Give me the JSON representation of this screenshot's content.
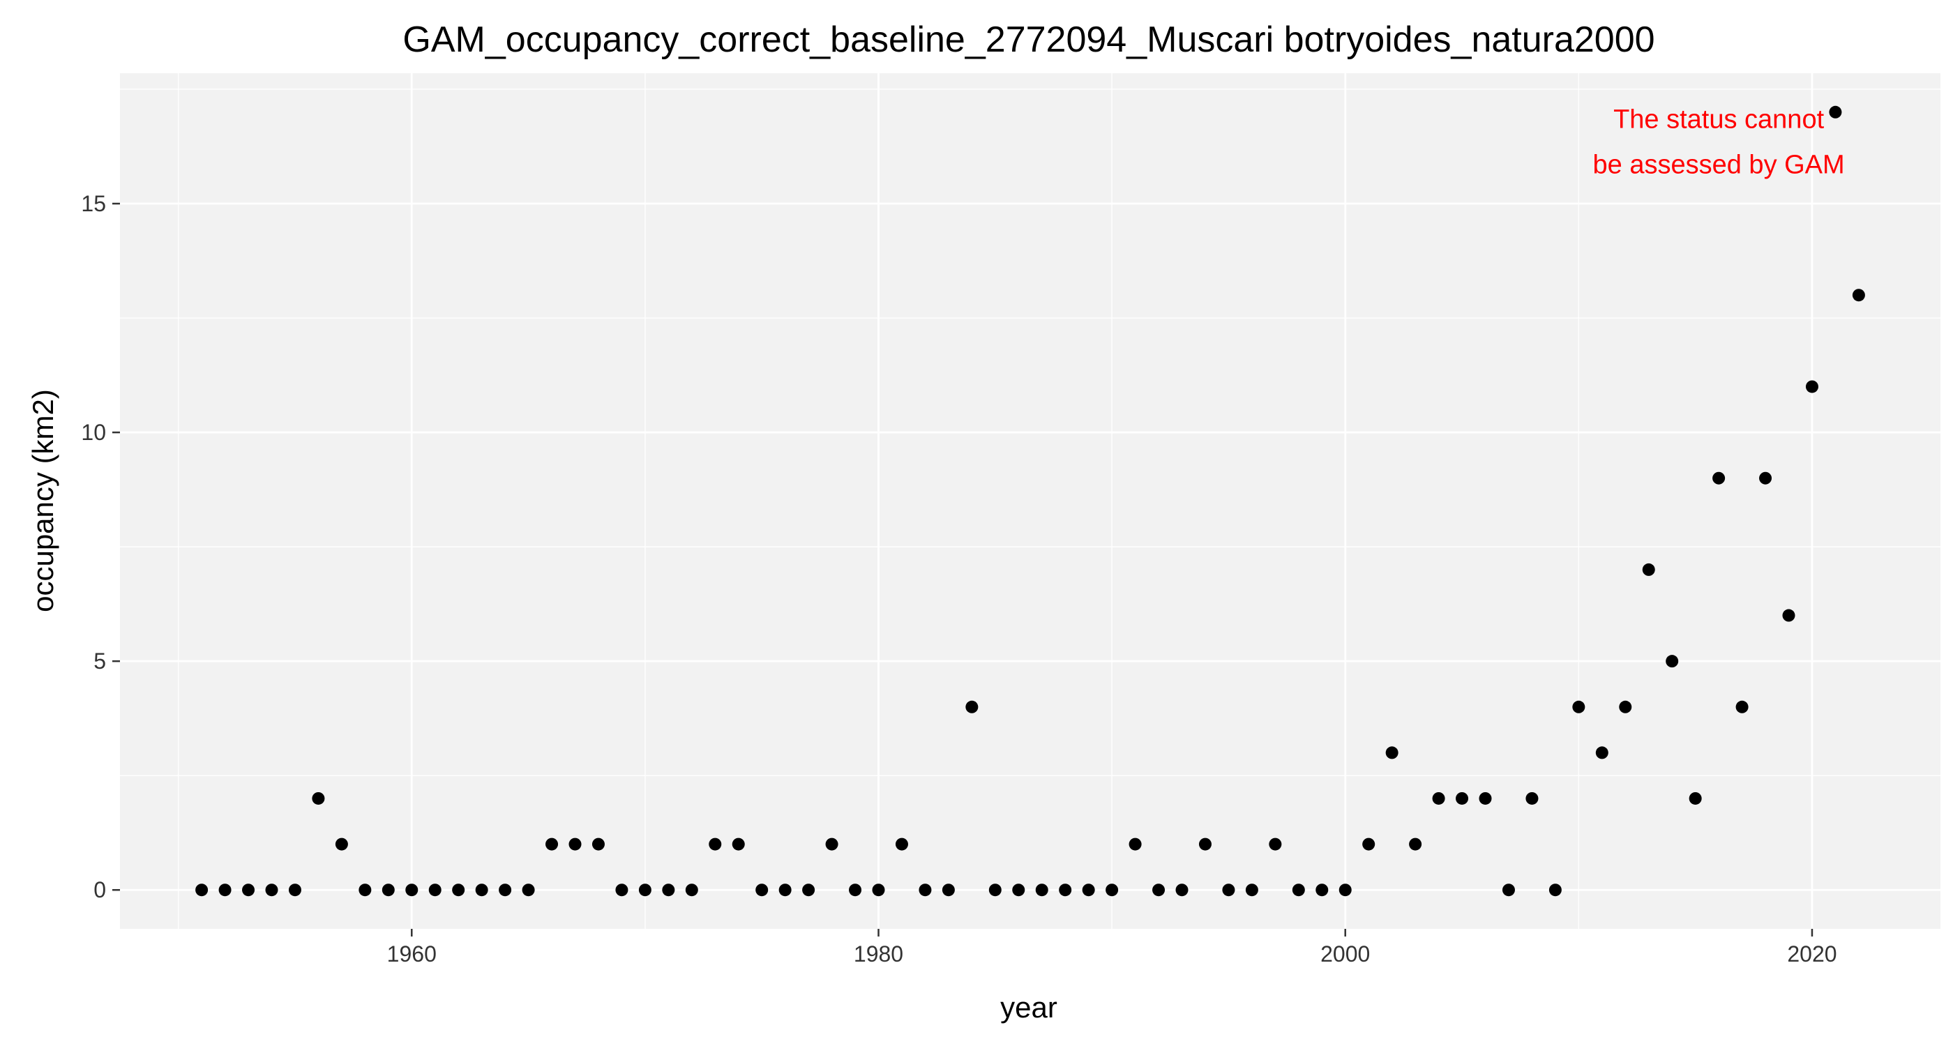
{
  "chart_data": {
    "type": "scatter",
    "title": "GAM_occupancy_correct_baseline_2772094_Muscari botryoides_natura2000",
    "xlabel": "year",
    "ylabel": "occupancy (km2)",
    "xlim": [
      1947.5,
      2025.5
    ],
    "ylim": [
      -0.85,
      17.85
    ],
    "x_ticks": [
      1960,
      1980,
      2000,
      2020
    ],
    "y_ticks": [
      0,
      5,
      10,
      15
    ],
    "x_minor_ticks": [
      1950,
      1970,
      1990,
      2010
    ],
    "y_minor_ticks": [
      2.5,
      7.5,
      12.5,
      17.5
    ],
    "grid": true,
    "legend": "none",
    "point_color": "#000000",
    "panel_background": "#f2f2f2",
    "annotation": {
      "lines": [
        "The status cannot",
        "be assessed by GAM"
      ],
      "color": "#ff0000",
      "x": 2016,
      "y": 16.5
    },
    "series": [
      {
        "x": [
          1951,
          1952,
          1953,
          1954,
          1955,
          1956,
          1957,
          1958,
          1959,
          1960,
          1961,
          1962,
          1963,
          1964,
          1965,
          1966,
          1967,
          1968,
          1969,
          1970,
          1971,
          1972,
          1973,
          1974,
          1975,
          1976,
          1977,
          1978,
          1979,
          1980,
          1981,
          1982,
          1983,
          1984,
          1985,
          1986,
          1987,
          1988,
          1989,
          1990,
          1991,
          1992,
          1993,
          1994,
          1995,
          1996,
          1997,
          1998,
          1999,
          2000,
          2001,
          2002,
          2003,
          2004,
          2005,
          2006,
          2007,
          2008,
          2009,
          2010,
          2011,
          2012,
          2013,
          2014,
          2015,
          2016,
          2017,
          2018,
          2019,
          2020,
          2021,
          2022
        ],
        "y": [
          0,
          0,
          0,
          0,
          0,
          2,
          1,
          0,
          0,
          0,
          0,
          0,
          0,
          0,
          0,
          1,
          1,
          1,
          0,
          0,
          0,
          0,
          1,
          1,
          0,
          0,
          0,
          1,
          0,
          0,
          1,
          0,
          0,
          4,
          0,
          0,
          0,
          0,
          0,
          0,
          1,
          0,
          0,
          1,
          0,
          0,
          1,
          0,
          0,
          0,
          1,
          3,
          1,
          2,
          2,
          2,
          0,
          2,
          0,
          4,
          3,
          4,
          7,
          5,
          2,
          9,
          4,
          9,
          6,
          11,
          17,
          13
        ]
      }
    ]
  }
}
